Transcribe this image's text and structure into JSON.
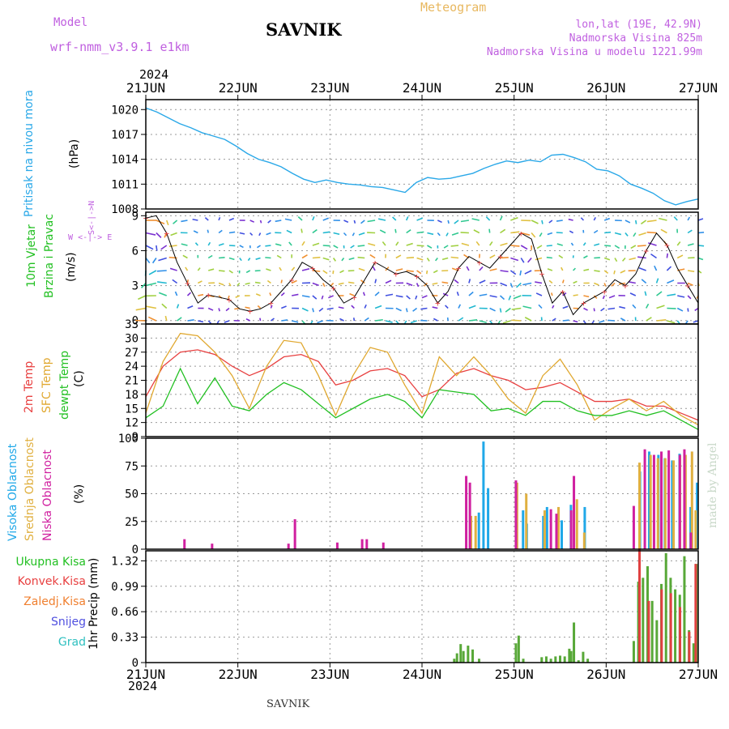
{
  "header": {
    "model_label": "Model",
    "model_name": "wrf-nmm_v3.9.1  e1km",
    "station": "SAVNIK",
    "meteogram_label": "Meteogram",
    "lonlat": "lon,lat (19E, 42.9N)",
    "elevation": "Nadmorska Visina 825m",
    "model_elevation": "Nadmorska Visina u modelu 1221.99m",
    "year": "2024"
  },
  "footer": {
    "station": "SAVNIK",
    "year": "2024",
    "credit": "made by Angel"
  },
  "colors": {
    "pressure": "#2aa8e8",
    "temp2m": "#e84040",
    "sfc": "#e0a830",
    "dewpt": "#22c022",
    "cloud_high": "#20a8e8",
    "cloud_mid": "#e0b040",
    "cloud_low": "#d020a0",
    "precip_total": "#58a838",
    "precip_conv": "#e04040",
    "snow": "#5050e0",
    "hail": "#30c0c0",
    "grid": "#999999"
  },
  "chart_data": [
    {
      "type": "line",
      "panel": "pressure",
      "x_labels": [
        "21JUN",
        "22JUN",
        "23JUN",
        "24JUN",
        "25JUN",
        "26JUN",
        "27JUN"
      ],
      "ylabel": "(hPa)",
      "side_label": "Pritisak na nivou mora",
      "yticks": [
        "1020",
        "1017",
        "1014",
        "1011",
        "1008"
      ],
      "ylim": [
        1008,
        1021.2
      ],
      "series": [
        {
          "values": [
            1020.2,
            1019.7,
            1019.0,
            1018.3,
            1017.8,
            1017.2,
            1016.8,
            1016.4,
            1015.6,
            1014.7,
            1014.0,
            1013.6,
            1013.1,
            1012.3,
            1011.6,
            1011.2,
            1011.5,
            1011.2,
            1011.0,
            1010.9,
            1010.7,
            1010.6,
            1010.3,
            1010.0,
            1011.2,
            1011.8,
            1011.6,
            1011.7,
            1012.0,
            1012.3,
            1012.9,
            1013.4,
            1013.8,
            1013.6,
            1013.9,
            1013.7,
            1014.5,
            1014.6,
            1014.2,
            1013.7,
            1012.8,
            1012.6,
            1012.0,
            1011.0,
            1010.5,
            1009.9,
            1009.0,
            1008.5,
            1008.9,
            1009.2
          ]
        }
      ]
    },
    {
      "type": "line",
      "panel": "wind",
      "ylabel": "(m/s)",
      "side_label": "10m Vjetar Brzina i Pravac",
      "compass": {
        "n": "N",
        "s": "S",
        "w": "W",
        "e": "E",
        "arrows": "<-|->"
      },
      "yticks": [
        "9",
        "6",
        "3",
        "0"
      ],
      "ylim": [
        -0.3,
        9.3
      ],
      "series": [
        {
          "values": [
            8.8,
            9.0,
            7.5,
            5.0,
            3.2,
            1.5,
            2.2,
            2.0,
            1.8,
            1.0,
            0.8,
            1.0,
            1.5,
            2.5,
            3.5,
            5.0,
            4.5,
            3.5,
            2.8,
            1.5,
            2.0,
            3.5,
            5.0,
            4.5,
            4.0,
            4.2,
            3.8,
            3.0,
            1.5,
            2.5,
            4.5,
            5.5,
            5.0,
            4.5,
            5.5,
            6.5,
            7.5,
            7.0,
            4.0,
            1.5,
            2.5,
            0.5,
            1.5,
            2.0,
            2.5,
            3.5,
            3.0,
            4.0,
            6.0,
            7.5,
            6.5,
            4.5,
            3.0,
            1.5
          ]
        }
      ]
    },
    {
      "type": "line",
      "panel": "temperature",
      "ylabel": "(C)",
      "side_labels": [
        "2m Temp",
        "SFC Temp",
        "dewpt Temp"
      ],
      "yticks": [
        "33",
        "30",
        "27",
        "24",
        "21",
        "18",
        "15",
        "12",
        "9"
      ],
      "ylim": [
        9,
        33
      ],
      "series": [
        {
          "name": "2m Temp",
          "values": [
            17.5,
            24.0,
            27.0,
            27.5,
            26.5,
            24.0,
            22.0,
            23.5,
            26.0,
            26.5,
            25.0,
            20.0,
            21.0,
            23.0,
            23.5,
            22.0,
            17.5,
            19.0,
            22.5,
            23.5,
            22.0,
            21.0,
            19.0,
            19.5,
            20.5,
            18.5,
            16.5,
            16.5,
            17.0,
            15.5,
            15.5,
            14.0,
            12.5
          ]
        },
        {
          "name": "SFC Temp",
          "values": [
            14.0,
            25.0,
            31.0,
            30.5,
            27.0,
            22.0,
            15.0,
            24.0,
            29.5,
            29.0,
            22.0,
            13.5,
            22.0,
            28.0,
            27.0,
            20.0,
            14.0,
            26.0,
            22.0,
            26.0,
            22.0,
            17.0,
            14.0,
            22.0,
            25.5,
            20.0,
            12.5,
            15.0,
            17.0,
            14.5,
            16.5,
            13.5,
            11.5
          ]
        },
        {
          "name": "dewpt Temp",
          "values": [
            13.0,
            15.5,
            23.5,
            16.0,
            21.5,
            15.5,
            14.5,
            18.0,
            20.5,
            19.0,
            16.0,
            13.0,
            15.0,
            17.0,
            18.0,
            16.5,
            13.0,
            19.0,
            18.5,
            18.0,
            14.5,
            15.0,
            13.5,
            16.5,
            16.5,
            14.5,
            13.5,
            13.5,
            14.5,
            13.5,
            14.5,
            12.5,
            10.5
          ]
        }
      ]
    },
    {
      "type": "bar",
      "panel": "clouds",
      "ylabel": "(%)",
      "side_labels": [
        "Visoka Oblacnost",
        "Srednja Oblacnost",
        "Niska Oblacnost"
      ],
      "yticks": [
        "100",
        "75",
        "50",
        "25",
        "0"
      ],
      "ylim": [
        0,
        100
      ],
      "series": [
        {
          "name": "Visoka Oblacnost",
          "values": [
            [
              3.6,
              33
            ],
            [
              3.65,
              97
            ],
            [
              3.7,
              55
            ],
            [
              4.08,
              35
            ],
            [
              4.12,
              23
            ],
            [
              4.3,
              30
            ],
            [
              4.34,
              38
            ],
            [
              4.5,
              26
            ],
            [
              4.6,
              40
            ],
            [
              4.75,
              38
            ],
            [
              5.35,
              70
            ],
            [
              5.45,
              88
            ],
            [
              5.55,
              85
            ],
            [
              5.62,
              82
            ],
            [
              5.7,
              80
            ],
            [
              5.78,
              86
            ],
            [
              5.9,
              38
            ],
            [
              5.97,
              60
            ]
          ]
        },
        {
          "name": "Srednja Oblacnost",
          "values": [
            [
              3.55,
              30
            ],
            [
              3.6,
              30
            ],
            [
              4.05,
              60
            ],
            [
              4.15,
              50
            ],
            [
              4.35,
              35
            ],
            [
              4.5,
              38
            ],
            [
              4.7,
              45
            ],
            [
              4.78,
              15
            ],
            [
              5.38,
              78
            ],
            [
              5.5,
              85
            ],
            [
              5.58,
              82
            ],
            [
              5.66,
              82
            ],
            [
              5.75,
              80
            ],
            [
              5.82,
              85
            ],
            [
              5.88,
              85
            ],
            [
              5.95,
              88
            ],
            [
              5.99,
              35
            ]
          ]
        },
        {
          "name": "Niska Oblacnost",
          "values": [
            [
              0.42,
              9
            ],
            [
              0.72,
              5
            ],
            [
              1.55,
              5
            ],
            [
              1.62,
              27
            ],
            [
              2.08,
              6
            ],
            [
              2.35,
              9
            ],
            [
              2.4,
              9
            ],
            [
              2.58,
              6
            ],
            [
              3.48,
              66
            ],
            [
              3.52,
              60
            ],
            [
              4.02,
              62
            ],
            [
              4.4,
              36
            ],
            [
              4.46,
              32
            ],
            [
              4.62,
              35
            ],
            [
              4.65,
              66
            ],
            [
              5.3,
              39
            ],
            [
              5.42,
              90
            ],
            [
              5.52,
              85
            ],
            [
              5.6,
              88
            ],
            [
              5.68,
              89
            ],
            [
              5.8,
              85
            ],
            [
              5.85,
              90
            ],
            [
              5.92,
              15
            ]
          ]
        }
      ]
    },
    {
      "type": "bar",
      "panel": "precipitation",
      "ylabel": "1hr Precip (mm)",
      "side_labels": [
        "Ukupna Kisa",
        "Konvek.Kisa",
        "Zaledj.Kisa",
        "Snijeg",
        "Grad"
      ],
      "yticks": [
        "1.32",
        "0.99",
        "0.66",
        "0.33",
        "0"
      ],
      "ylim": [
        0,
        1.45
      ],
      "series": [
        {
          "name": "Ukupna Kisa",
          "values": [
            [
              3.35,
              0.05
            ],
            [
              3.38,
              0.12
            ],
            [
              3.42,
              0.24
            ],
            [
              3.45,
              0.15
            ],
            [
              3.5,
              0.22
            ],
            [
              3.55,
              0.17
            ],
            [
              3.62,
              0.05
            ],
            [
              4.02,
              0.25
            ],
            [
              4.05,
              0.35
            ],
            [
              4.1,
              0.05
            ],
            [
              4.3,
              0.07
            ],
            [
              4.35,
              0.08
            ],
            [
              4.4,
              0.05
            ],
            [
              4.45,
              0.08
            ],
            [
              4.5,
              0.09
            ],
            [
              4.55,
              0.08
            ],
            [
              4.6,
              0.18
            ],
            [
              4.62,
              0.15
            ],
            [
              4.65,
              0.52
            ],
            [
              4.7,
              0.03
            ],
            [
              4.75,
              0.14
            ],
            [
              4.8,
              0.05
            ],
            [
              5.3,
              0.28
            ],
            [
              5.35,
              1.05
            ],
            [
              5.4,
              1.1
            ],
            [
              5.45,
              1.25
            ],
            [
              5.5,
              0.8
            ],
            [
              5.55,
              0.55
            ],
            [
              5.6,
              1.02
            ],
            [
              5.65,
              1.42
            ],
            [
              5.7,
              1.1
            ],
            [
              5.75,
              0.95
            ],
            [
              5.8,
              0.88
            ],
            [
              5.85,
              1.38
            ],
            [
              5.9,
              0.42
            ],
            [
              5.95,
              0.25
            ],
            [
              5.98,
              1.28
            ]
          ]
        },
        {
          "name": "Konvek.Kisa",
          "values": [
            [
              5.38,
              1.48
            ],
            [
              5.48,
              0.8
            ],
            [
              5.62,
              0.95
            ],
            [
              5.72,
              0.9
            ],
            [
              5.82,
              0.72
            ],
            [
              5.92,
              0.4
            ],
            [
              5.99,
              1.28
            ]
          ]
        }
      ]
    }
  ]
}
